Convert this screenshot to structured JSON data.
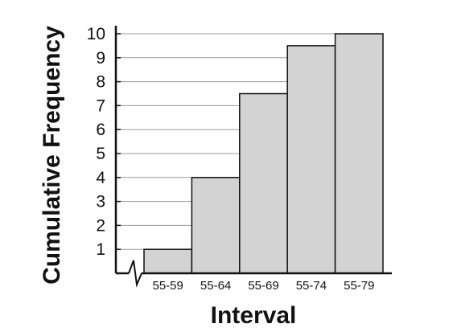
{
  "chart_data": {
    "type": "bar",
    "title": "",
    "xlabel": "Interval",
    "ylabel": "Cumulative Frequency",
    "categories": [
      "55-59",
      "55-64",
      "55-69",
      "55-74",
      "55-79"
    ],
    "values": [
      1,
      4,
      7.5,
      9.5,
      10
    ],
    "ylim": [
      0,
      10
    ],
    "yticks": [
      1,
      2,
      3,
      4,
      5,
      6,
      7,
      8,
      9,
      10
    ],
    "grid": true,
    "axis_break": true,
    "bar_color": "#d3d3d3",
    "edge_color": "#111111"
  }
}
